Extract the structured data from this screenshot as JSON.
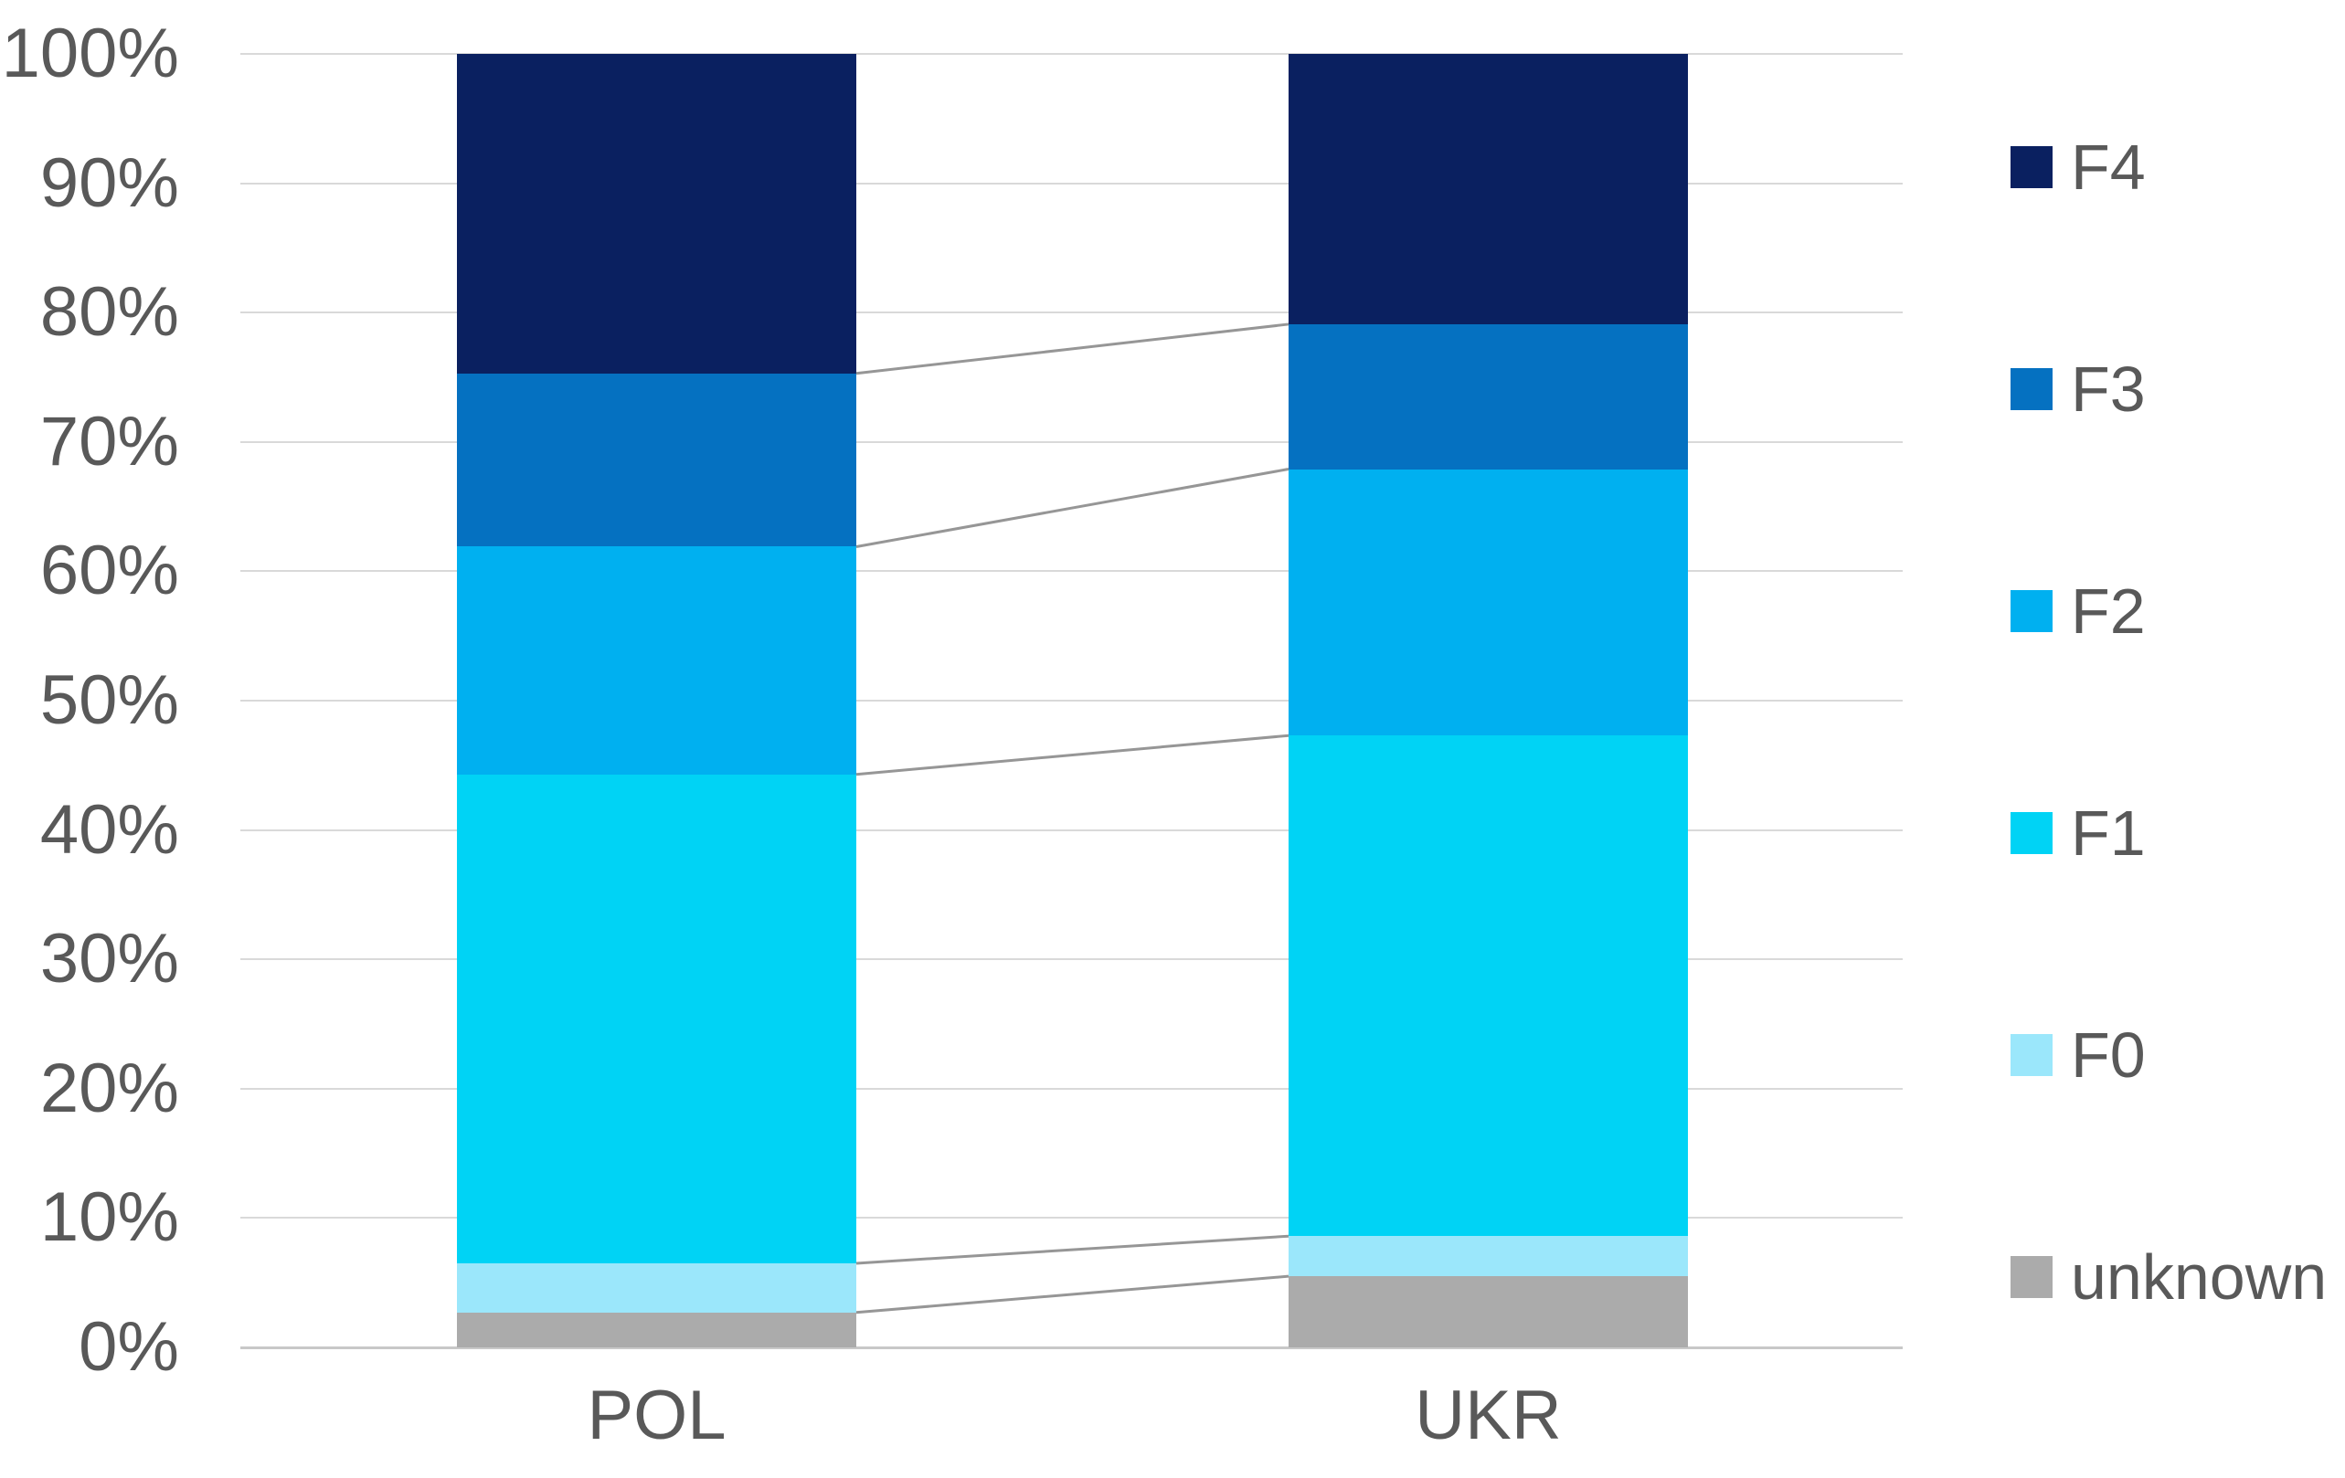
{
  "chart_data": {
    "type": "bar",
    "subtype": "stacked-100-percent-column",
    "title": "",
    "categories": [
      "POL",
      "UKR"
    ],
    "series": [
      {
        "name": "unknown",
        "color": "#ababab",
        "values": [
          2.7,
          5.5
        ]
      },
      {
        "name": "F0",
        "color": "#9be7fb",
        "values": [
          3.8,
          3.1
        ]
      },
      {
        "name": "F1",
        "color": "#00d3f5",
        "values": [
          37.8,
          38.7
        ]
      },
      {
        "name": "F2",
        "color": "#00b0f0",
        "values": [
          17.6,
          20.6
        ]
      },
      {
        "name": "F3",
        "color": "#0571c1",
        "values": [
          13.4,
          11.2
        ]
      },
      {
        "name": "F4",
        "color": "#0a2060",
        "values": [
          24.7,
          20.9
        ]
      }
    ],
    "stack_order_note": "series listed bottom-to-top; values are percent of total per category",
    "y_axis": {
      "min": 0,
      "max": 100,
      "tick_step": 10,
      "ticks": [
        "0%",
        "10%",
        "20%",
        "30%",
        "40%",
        "50%",
        "60%",
        "70%",
        "80%",
        "90%",
        "100%"
      ]
    },
    "x_axis": {
      "labels": [
        "POL",
        "UKR"
      ]
    },
    "legend": {
      "position": "right",
      "order_top_to_bottom": [
        "F4",
        "F3",
        "F2",
        "F1",
        "F0",
        "unknown"
      ]
    },
    "grid": true,
    "series_connector_lines": true
  },
  "colors": {
    "background": "#ffffff",
    "gridline": "#d9d9d9",
    "axis_line": "#c8c8c8",
    "connector_line": "#969696",
    "text": "#595959"
  }
}
